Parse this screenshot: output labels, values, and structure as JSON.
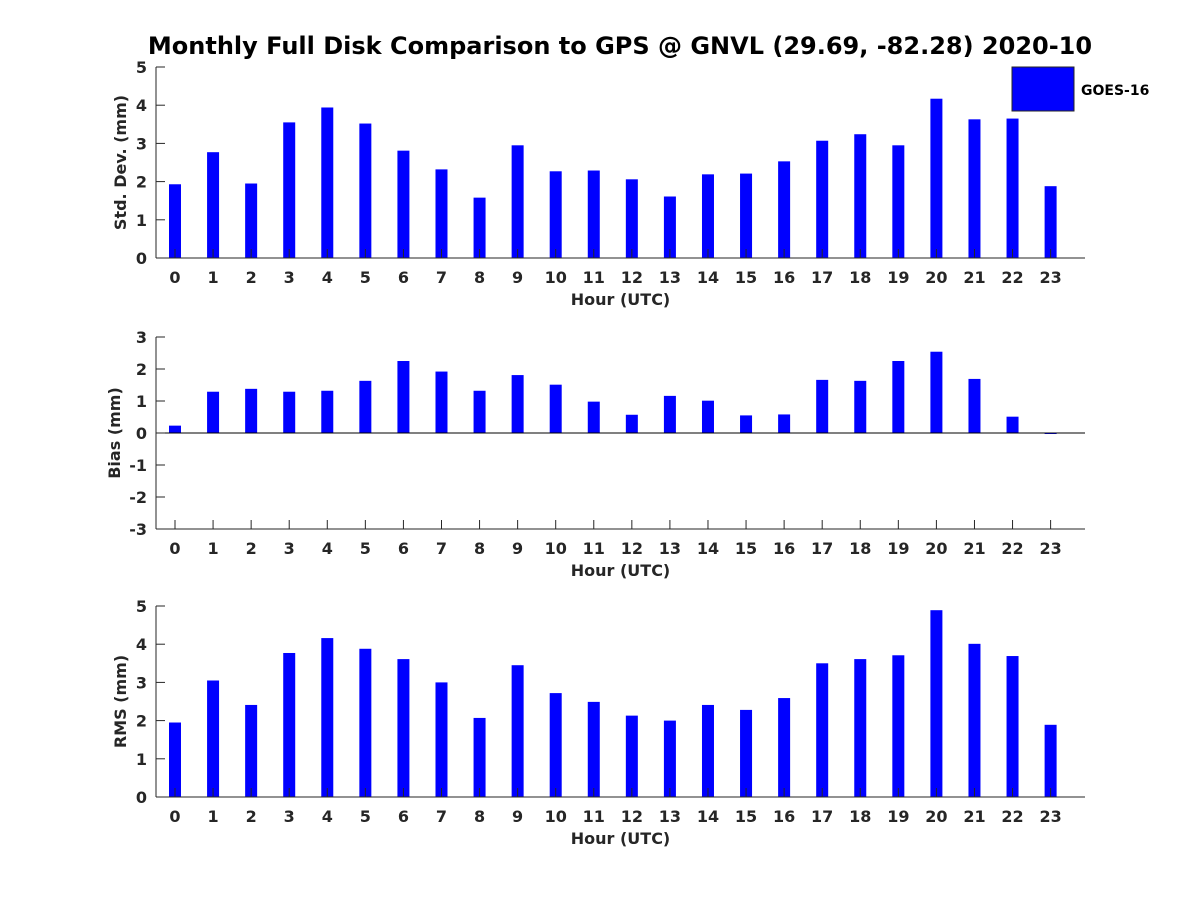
{
  "title": "Monthly Full Disk Comparison to GPS @ GNVL (29.69, -82.28) 2020-10",
  "legend": {
    "label": "GOES-16",
    "placement": "top-right"
  },
  "colors": {
    "bar": "#0000ff",
    "axis": "#262626"
  },
  "chart_data": [
    {
      "type": "bar",
      "categories": [
        "0",
        "1",
        "2",
        "3",
        "4",
        "5",
        "6",
        "7",
        "8",
        "9",
        "10",
        "11",
        "12",
        "13",
        "14",
        "15",
        "16",
        "17",
        "18",
        "19",
        "20",
        "21",
        "22",
        "23"
      ],
      "series": [
        {
          "name": "GOES-16",
          "values": [
            1.93,
            2.77,
            1.95,
            3.55,
            3.94,
            3.52,
            2.81,
            2.32,
            1.58,
            2.95,
            2.27,
            2.29,
            2.06,
            1.61,
            2.19,
            2.21,
            2.53,
            3.07,
            3.24,
            2.95,
            4.17,
            3.63,
            3.65,
            1.88
          ]
        }
      ],
      "xlabel": "Hour (UTC)",
      "ylabel": "Std. Dev. (mm)",
      "ylim": [
        0,
        5
      ],
      "yticks": [
        0,
        1,
        2,
        3,
        4,
        5
      ],
      "grid": false
    },
    {
      "type": "bar",
      "categories": [
        "0",
        "1",
        "2",
        "3",
        "4",
        "5",
        "6",
        "7",
        "8",
        "9",
        "10",
        "11",
        "12",
        "13",
        "14",
        "15",
        "16",
        "17",
        "18",
        "19",
        "20",
        "21",
        "22",
        "23"
      ],
      "series": [
        {
          "name": "GOES-16",
          "values": [
            0.23,
            1.29,
            1.38,
            1.29,
            1.32,
            1.63,
            2.25,
            1.92,
            1.32,
            1.81,
            1.51,
            0.98,
            0.57,
            1.16,
            1.01,
            0.55,
            0.58,
            1.66,
            1.63,
            2.25,
            2.54,
            1.69,
            0.51,
            -0.03
          ]
        }
      ],
      "xlabel": "Hour (UTC)",
      "ylabel": "Bias (mm)",
      "ylim": [
        -3,
        3
      ],
      "yticks": [
        -3,
        -2,
        -1,
        0,
        1,
        2,
        3
      ],
      "grid": false
    },
    {
      "type": "bar",
      "categories": [
        "0",
        "1",
        "2",
        "3",
        "4",
        "5",
        "6",
        "7",
        "8",
        "9",
        "10",
        "11",
        "12",
        "13",
        "14",
        "15",
        "16",
        "17",
        "18",
        "19",
        "20",
        "21",
        "22",
        "23"
      ],
      "series": [
        {
          "name": "GOES-16",
          "values": [
            1.95,
            3.05,
            2.41,
            3.77,
            4.16,
            3.88,
            3.61,
            3.0,
            2.07,
            3.45,
            2.72,
            2.49,
            2.13,
            2.0,
            2.41,
            2.28,
            2.59,
            3.5,
            3.61,
            3.71,
            4.89,
            4.01,
            3.69,
            1.89
          ]
        }
      ],
      "xlabel": "Hour (UTC)",
      "ylabel": "RMS (mm)",
      "ylim": [
        0,
        5
      ],
      "yticks": [
        0,
        1,
        2,
        3,
        4,
        5
      ],
      "grid": false
    }
  ]
}
